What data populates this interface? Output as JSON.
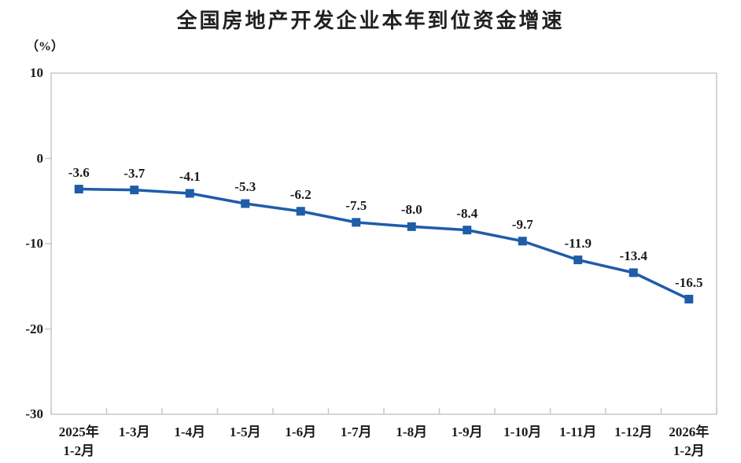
{
  "chart_data": {
    "type": "line",
    "title": "全国房地产开发企业本年到位资金增速",
    "unit_label": "（%）",
    "categories": [
      "2025年\n1-2月",
      "1-3月",
      "1-4月",
      "1-5月",
      "1-6月",
      "1-7月",
      "1-8月",
      "1-9月",
      "1-10月",
      "1-11月",
      "1-12月",
      "2026年\n1-2月"
    ],
    "values": [
      -3.6,
      -3.7,
      -4.1,
      -5.3,
      -6.2,
      -7.5,
      -8.0,
      -8.4,
      -9.7,
      -11.9,
      -13.4,
      -16.5
    ],
    "data_labels": [
      "-3.6",
      "-3.7",
      "-4.1",
      "-5.3",
      "-6.2",
      "-7.5",
      "-8.0",
      "-8.4",
      "-9.7",
      "-11.9",
      "-13.4",
      "-16.5"
    ],
    "xlabel": "",
    "ylabel": "（%）",
    "ylim": [
      -30,
      10
    ],
    "yticks": [
      10,
      0,
      -10,
      -20,
      -30
    ],
    "ytick_labels": [
      "10",
      "0",
      "-10",
      "-20",
      "-30"
    ],
    "grid": false,
    "legend": "none",
    "marker": "square",
    "colors": {
      "line": "#1F5CA9",
      "marker": "#1F5CA9",
      "axis_frame": "#C8C8C8",
      "text": "#1A1A1A",
      "title": "#212121"
    }
  }
}
